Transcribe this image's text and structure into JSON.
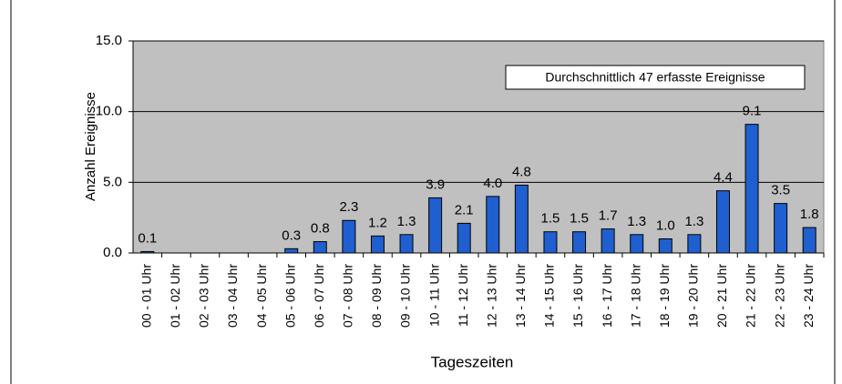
{
  "chart_data": {
    "type": "bar",
    "categories": [
      "00 - 01 Uhr",
      "01 - 02 Uhr",
      "02 - 03 Uhr",
      "03 - 04 Uhr",
      "04 - 05 Uhr",
      "05 - 06 Uhr",
      "06 - 07 Uhr",
      "07 - 08 Uhr",
      "08 - 09 Uhr",
      "09 - 10 Uhr",
      "10 - 11 Uhr",
      "11 - 12 Uhr",
      "12 - 13 Uhr",
      "13 - 14 Uhr",
      "14 - 15 Uhr",
      "15 - 16 Uhr",
      "16 - 17 Uhr",
      "17 - 18 Uhr",
      "18 - 19 Uhr",
      "19 - 20 Uhr",
      "20 - 21 Uhr",
      "21 - 22 Uhr",
      "22 - 23 Uhr",
      "23 - 24 Uhr"
    ],
    "values": [
      0.1,
      0,
      0,
      0,
      0,
      0.3,
      0.8,
      2.3,
      1.2,
      1.3,
      3.9,
      2.1,
      4.0,
      4.8,
      1.5,
      1.5,
      1.7,
      1.3,
      1.0,
      1.3,
      4.4,
      9.1,
      3.5,
      1.8
    ],
    "value_labels": [
      "0.1",
      null,
      null,
      null,
      null,
      "0.3",
      "0.8",
      "2.3",
      "1.2",
      "1.3",
      "3.9",
      "2.1",
      "4.0",
      "4.8",
      "1.5",
      "1.5",
      "1.7",
      "1.3",
      "1.0",
      "1.3",
      "4.4",
      "9.1",
      "3.5",
      "1.8"
    ],
    "color": "#1f5fcf",
    "ylim": [
      0,
      15
    ],
    "yticks": [
      {
        "value": 0,
        "label": "0.0"
      },
      {
        "value": 5,
        "label": "5.0"
      },
      {
        "value": 10,
        "label": "10.0"
      },
      {
        "value": 15,
        "label": "15.0"
      }
    ],
    "grid": true,
    "y_label": "Anzahl Ereignisse",
    "x_label": "Tageszeiten",
    "annotation": "Durchschnittlich 47 erfasste Ereignisse"
  }
}
